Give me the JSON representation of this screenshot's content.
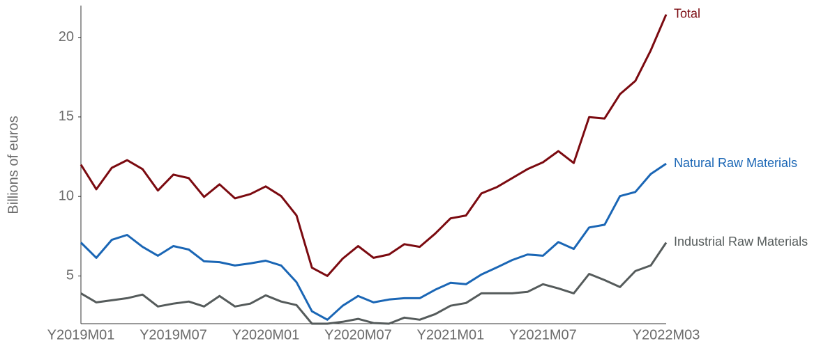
{
  "chart_data": {
    "type": "line",
    "y_label": "Billions of euros",
    "categories": [
      "Y2019M01",
      null,
      null,
      null,
      null,
      null,
      "Y2019M07",
      null,
      null,
      null,
      null,
      null,
      "Y2020M01",
      null,
      null,
      null,
      null,
      null,
      "Y2020M07",
      null,
      null,
      null,
      null,
      null,
      "Y2021M01",
      null,
      null,
      null,
      null,
      null,
      "Y2021M07",
      null,
      null,
      null,
      null,
      null,
      null,
      null,
      "Y2022M03"
    ],
    "series": [
      {
        "name": "Total",
        "color": "#7b0a10",
        "values": [
          12.0,
          10.45,
          11.8,
          12.28,
          11.72,
          10.37,
          11.37,
          11.15,
          9.97,
          10.76,
          9.88,
          10.15,
          10.63,
          10.02,
          8.8,
          5.52,
          5.0,
          6.09,
          6.88,
          6.14,
          6.35,
          7.0,
          6.83,
          7.66,
          8.62,
          8.8,
          10.19,
          10.58,
          11.15,
          11.72,
          12.15,
          12.85,
          12.1,
          14.99,
          14.9,
          16.43,
          17.26,
          19.18,
          21.44
        ]
      },
      {
        "name": "Natural Raw Materials",
        "color": "#1a66b5",
        "values": [
          7.1,
          6.14,
          7.27,
          7.58,
          6.83,
          6.27,
          6.88,
          6.66,
          5.92,
          5.87,
          5.66,
          5.79,
          5.96,
          5.66,
          4.61,
          2.78,
          2.25,
          3.13,
          3.74,
          3.34,
          3.52,
          3.6,
          3.6,
          4.13,
          4.57,
          4.48,
          5.09,
          5.53,
          6.0,
          6.35,
          6.27,
          7.13,
          6.7,
          8.05,
          8.22,
          10.02,
          10.28,
          11.41,
          12.06
        ]
      },
      {
        "name": "Industrial Raw Materials",
        "color": "#555b5b",
        "values": [
          3.91,
          3.34,
          3.47,
          3.6,
          3.83,
          3.08,
          3.26,
          3.39,
          3.08,
          3.74,
          3.08,
          3.26,
          3.78,
          3.39,
          3.17,
          2.0,
          2.0,
          2.12,
          2.3,
          2.04,
          2.0,
          2.38,
          2.25,
          2.6,
          3.13,
          3.3,
          3.91,
          3.91,
          3.91,
          4.0,
          4.48,
          4.22,
          3.91,
          5.13,
          4.74,
          4.3,
          5.31,
          5.66,
          7.1
        ]
      }
    ],
    "ylim": [
      2,
      22
    ],
    "yticks": [
      5,
      10,
      15,
      20
    ]
  }
}
